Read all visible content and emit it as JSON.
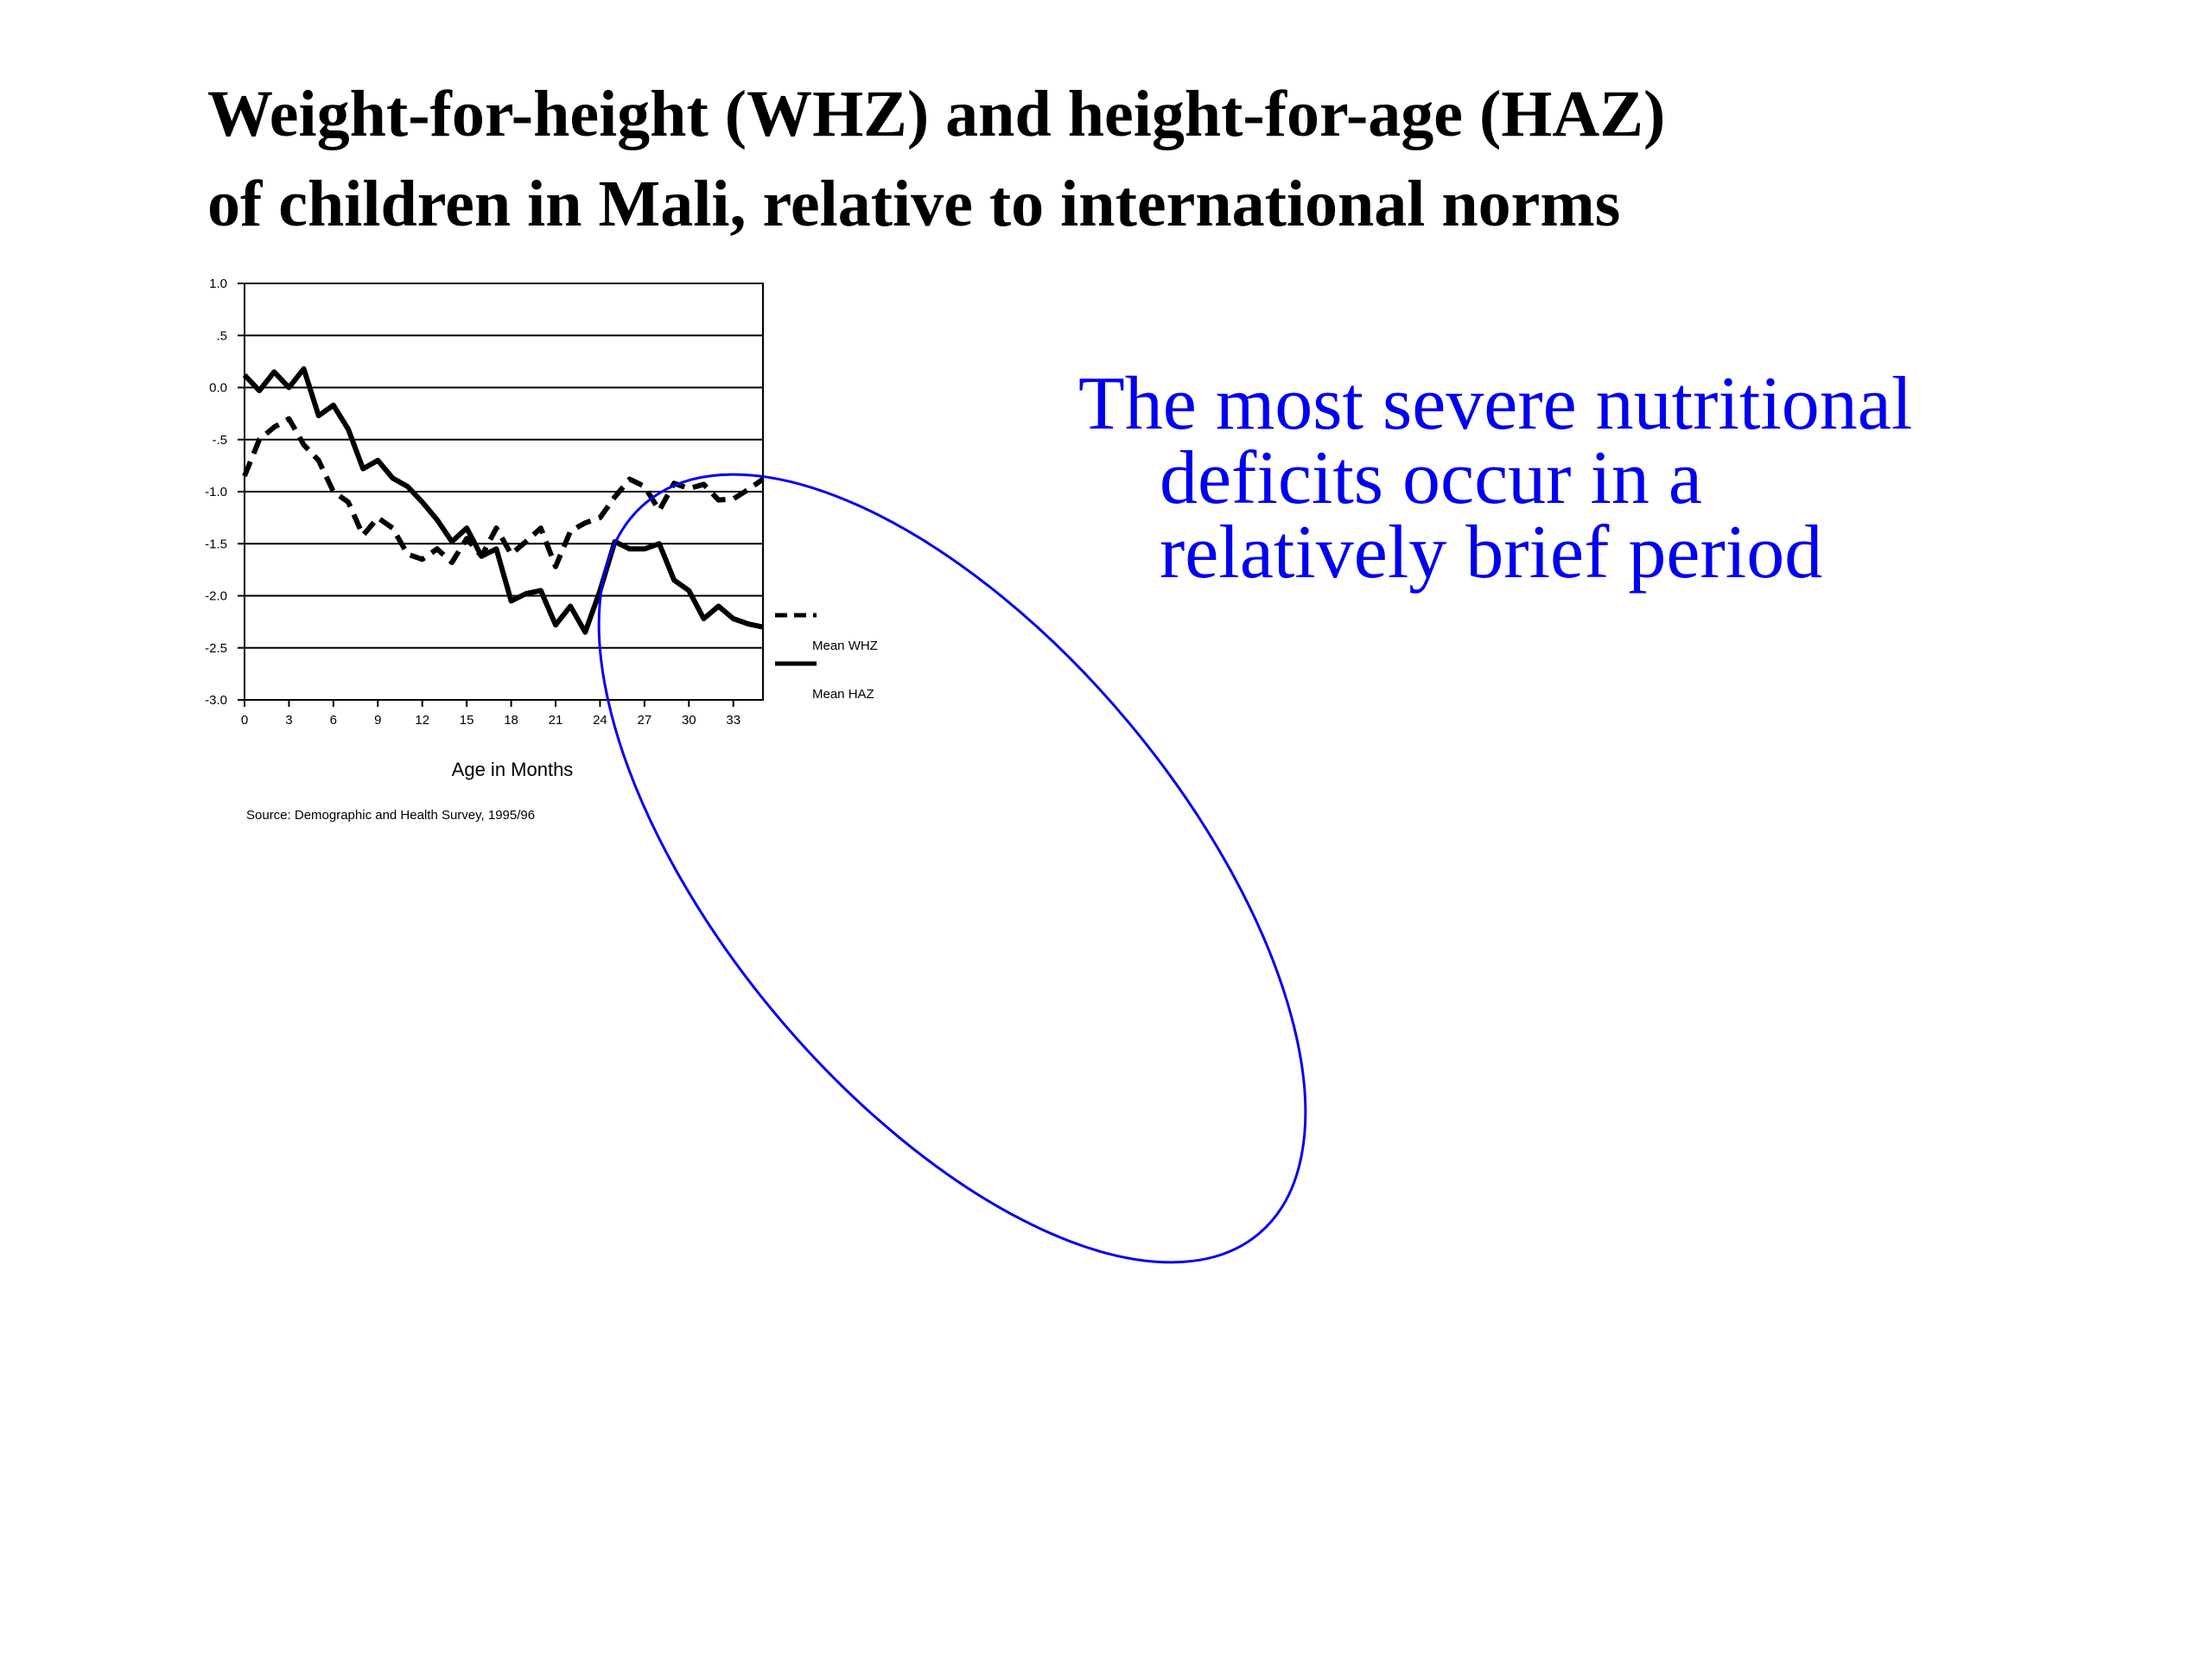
{
  "slide": {
    "title_lines": [
      "Weight-for-height (WHZ) and height-for-age (HAZ)",
      "of children in Mali, relative to international norms"
    ],
    "callout_lines": [
      "The most severe nutritional",
      "deficits occur in a",
      "relatively brief period"
    ],
    "callout_color": "#0000ee"
  },
  "chart_data": {
    "type": "line",
    "xlabel": "Age in Months",
    "ylabel": "",
    "source": "Source: Demographic and Health Survey, 1995/96",
    "xlim": [
      0,
      35
    ],
    "ylim": [
      -3.0,
      1.0
    ],
    "x_ticks": [
      0,
      3,
      6,
      9,
      12,
      15,
      18,
      21,
      24,
      27,
      30,
      33
    ],
    "y_ticks": [
      1.0,
      0.5,
      0.0,
      -0.5,
      -1.0,
      -1.5,
      -2.0,
      -2.5,
      -3.0
    ],
    "y_tick_labels": [
      "1.0",
      ".5",
      "0.0",
      "-.5",
      "-1.0",
      "-1.5",
      "-2.0",
      "-2.5",
      "-3.0"
    ],
    "grid": true,
    "legend_position": "right",
    "x": [
      0,
      1,
      2,
      3,
      4,
      5,
      6,
      7,
      8,
      9,
      10,
      11,
      12,
      13,
      14,
      15,
      16,
      17,
      18,
      19,
      20,
      21,
      22,
      23,
      24,
      25,
      26,
      27,
      28,
      29,
      30,
      31,
      32,
      33,
      34,
      35
    ],
    "series": [
      {
        "name": "Mean WHZ",
        "style": "dashed",
        "values": [
          -0.85,
          -0.5,
          -0.38,
          -0.3,
          -0.55,
          -0.7,
          -1.0,
          -1.1,
          -1.42,
          -1.25,
          -1.35,
          -1.6,
          -1.65,
          -1.55,
          -1.68,
          -1.45,
          -1.62,
          -1.35,
          -1.6,
          -1.48,
          -1.35,
          -1.72,
          -1.38,
          -1.3,
          -1.25,
          -1.05,
          -0.88,
          -0.95,
          -1.18,
          -0.92,
          -0.97,
          -0.93,
          -1.08,
          -1.07,
          -0.98,
          -0.88
        ]
      },
      {
        "name": "Mean HAZ",
        "style": "solid",
        "values": [
          0.12,
          -0.03,
          0.15,
          0.0,
          0.18,
          -0.27,
          -0.17,
          -0.4,
          -0.78,
          -0.7,
          -0.87,
          -0.95,
          -1.1,
          -1.27,
          -1.48,
          -1.35,
          -1.62,
          -1.55,
          -2.05,
          -1.98,
          -1.95,
          -2.28,
          -2.1,
          -2.35,
          -1.95,
          -1.48,
          -1.55,
          -1.55,
          -1.5,
          -1.85,
          -1.95,
          -2.22,
          -2.1,
          -2.22,
          -2.27,
          -2.3
        ]
      }
    ],
    "annotation": {
      "shape": "ellipse",
      "color": "#0000ee",
      "highlights_x_range": [
        21,
        35
      ]
    }
  }
}
